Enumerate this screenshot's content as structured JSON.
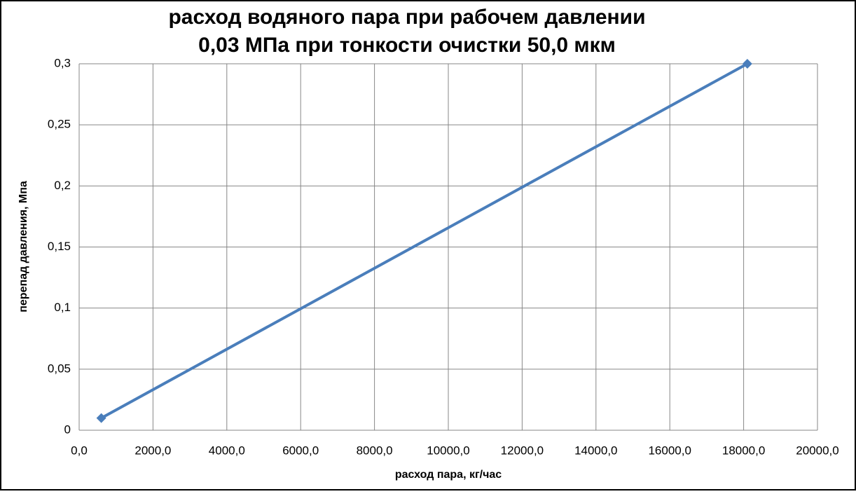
{
  "chart_data": {
    "type": "line",
    "title": [
      "расход водяного пара при рабочем давлении",
      "0,03 МПа при тонкости очистки 50,0 мкм"
    ],
    "x_label": "расход пара, кг/час",
    "y_label": "перепад давления, Мпа",
    "x": [
      600,
      18100
    ],
    "series": [
      {
        "color": "#4a7ebb",
        "values": [
          0.01,
          0.3
        ]
      }
    ],
    "xlim": [
      0,
      20000
    ],
    "xticks": [
      {
        "value": 0,
        "label": "0,0"
      },
      {
        "value": 2000,
        "label": "2000,0"
      },
      {
        "value": 4000,
        "label": "4000,0"
      },
      {
        "value": 6000,
        "label": "6000,0"
      },
      {
        "value": 8000,
        "label": "8000,0"
      },
      {
        "value": 10000,
        "label": "10000,0"
      },
      {
        "value": 12000,
        "label": "12000,0"
      },
      {
        "value": 14000,
        "label": "14000,0"
      },
      {
        "value": 16000,
        "label": "16000,0"
      },
      {
        "value": 18000,
        "label": "18000,0"
      },
      {
        "value": 20000,
        "label": "20000,0"
      }
    ],
    "ylim": [
      0,
      0.3
    ],
    "yticks": [
      0,
      {
        "value": 0.05,
        "label": "0,05"
      },
      {
        "value": 0.1,
        "label": "0,1"
      },
      {
        "value": 0.15,
        "label": "0,15"
      },
      {
        "value": 0.2,
        "label": "0,2"
      },
      {
        "value": 0.25,
        "label": "0,25"
      },
      {
        "value": 0.3,
        "label": "0,3"
      }
    ],
    "grid": true,
    "markers": "diamond"
  }
}
